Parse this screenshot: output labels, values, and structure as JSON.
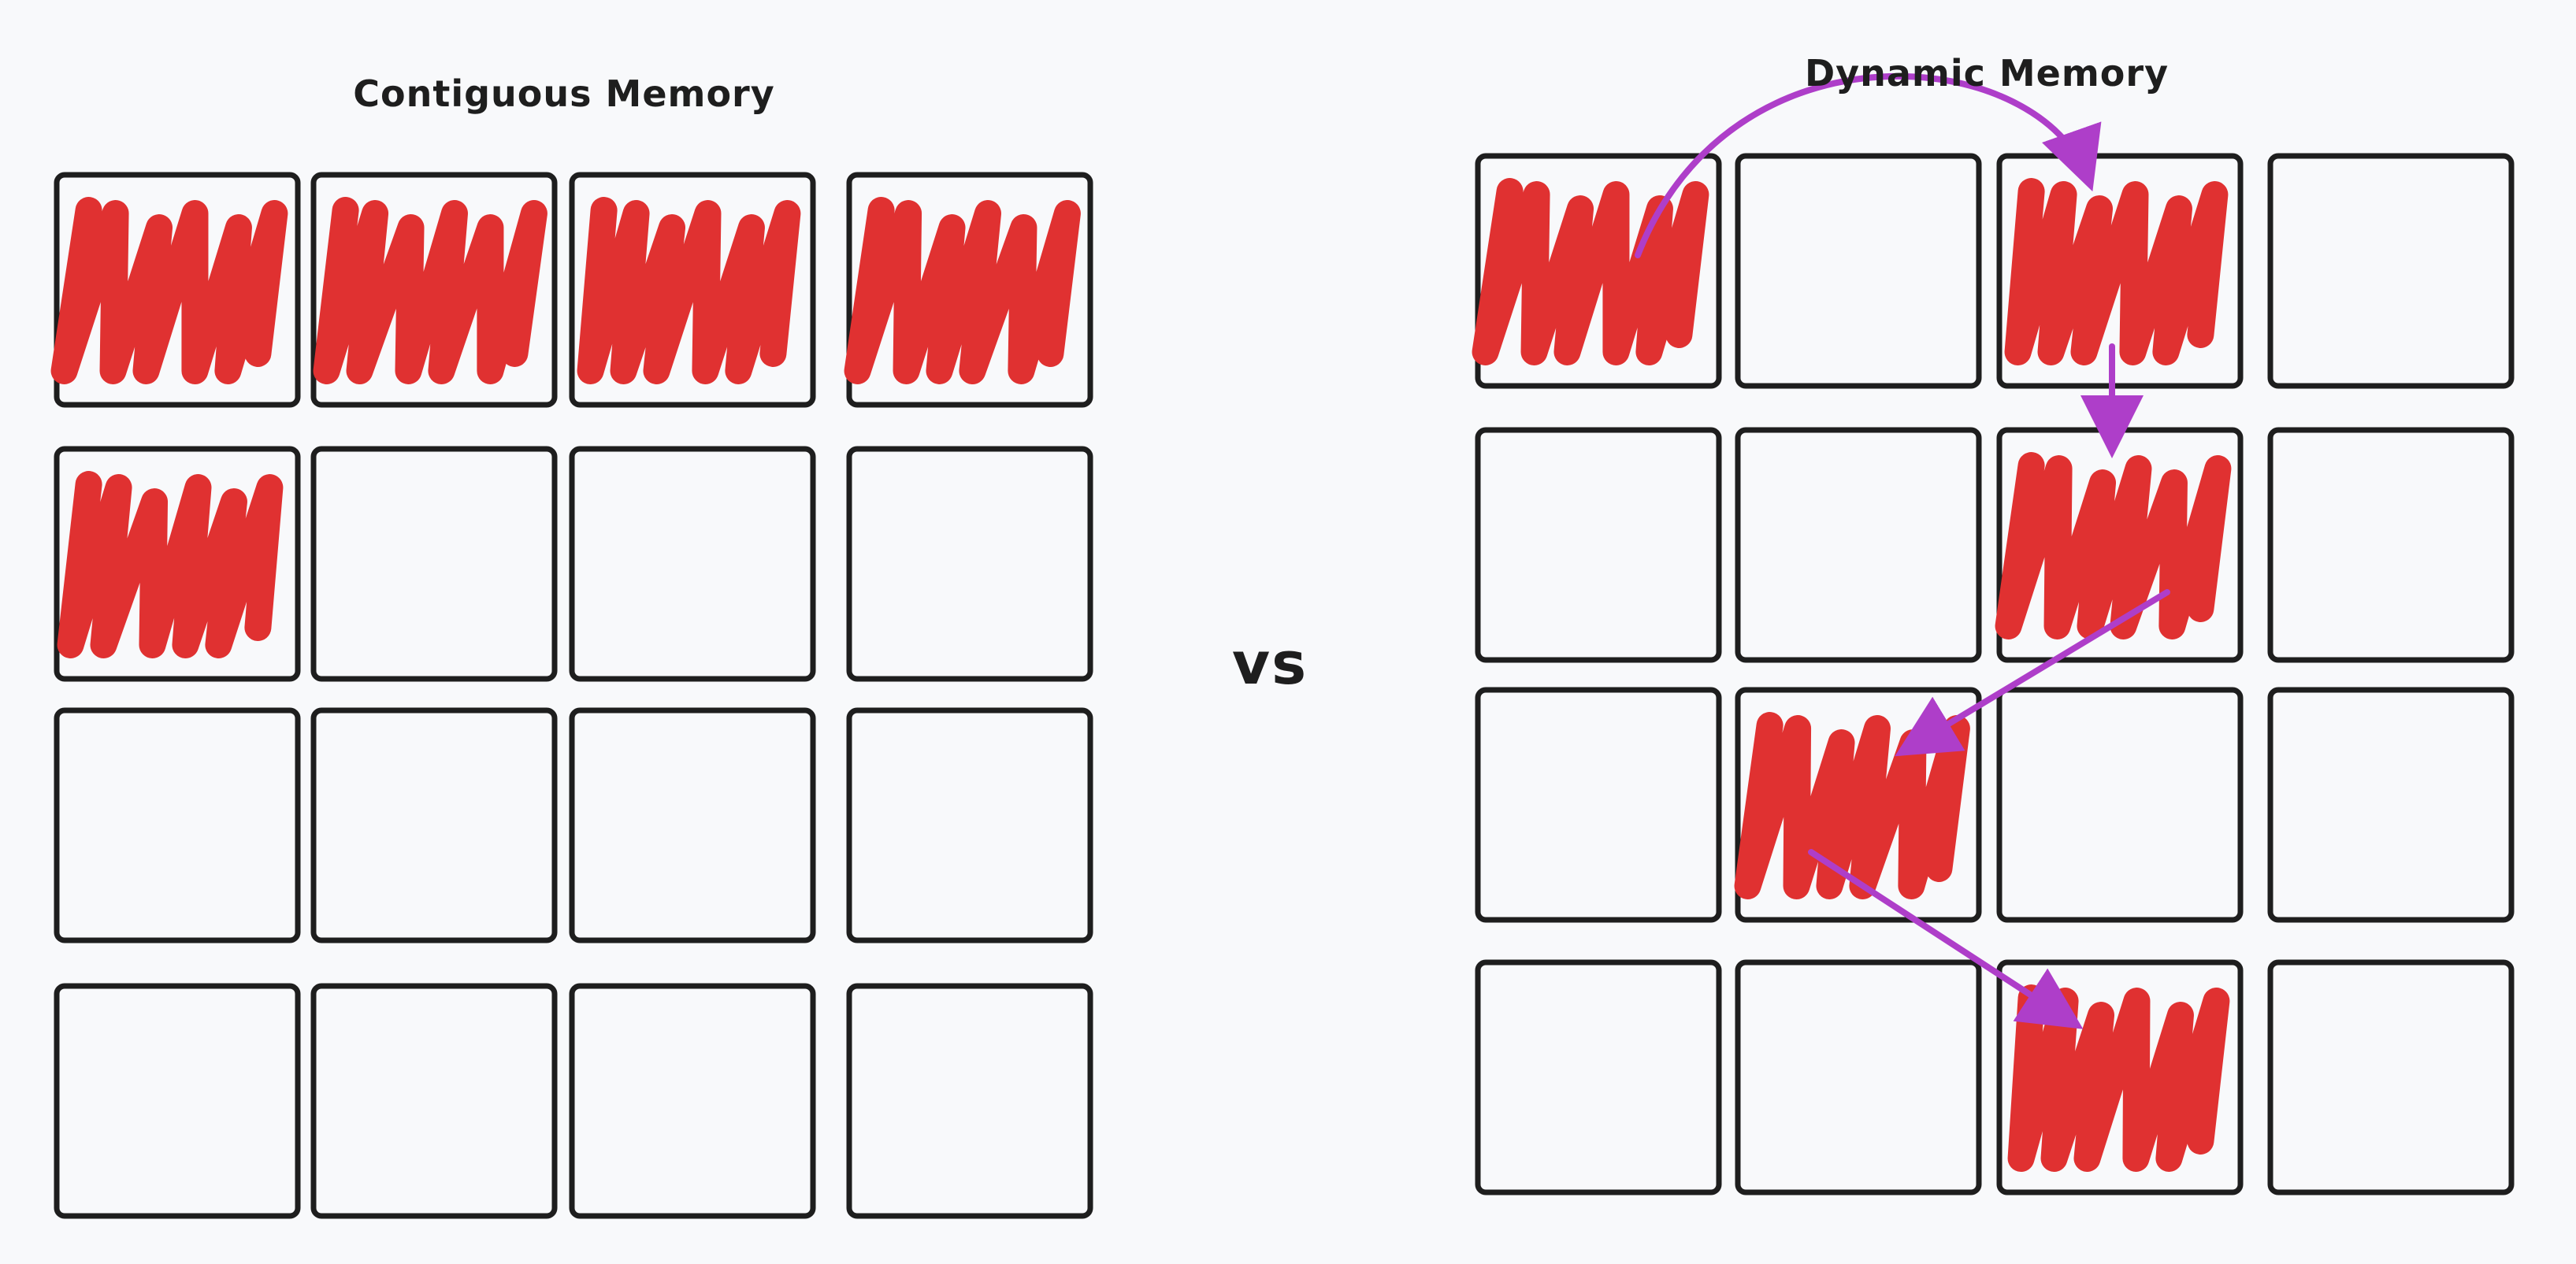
{
  "diagram": {
    "left_title": "Contiguous Memory",
    "right_title": "Dynamic Memory",
    "separator": "vs",
    "colors": {
      "background": "#f8f9fb",
      "cell_border": "#1e1e1e",
      "fill_scribble": "#e03131",
      "link_arrow": "#ae3ec9"
    },
    "grid": {
      "rows": 4,
      "cols": 4
    },
    "left_grid": {
      "filled_cells": [
        [
          0,
          0
        ],
        [
          0,
          1
        ],
        [
          0,
          2
        ],
        [
          0,
          3
        ],
        [
          1,
          0
        ]
      ]
    },
    "right_grid": {
      "filled_cells": [
        [
          0,
          0
        ],
        [
          0,
          2
        ],
        [
          1,
          2
        ],
        [
          2,
          1
        ],
        [
          3,
          2
        ]
      ],
      "links": [
        {
          "from": [
            0,
            0
          ],
          "to": [
            0,
            2
          ]
        },
        {
          "from": [
            0,
            2
          ],
          "to": [
            1,
            2
          ]
        },
        {
          "from": [
            1,
            2
          ],
          "to": [
            2,
            1
          ]
        },
        {
          "from": [
            2,
            1
          ],
          "to": [
            3,
            2
          ]
        }
      ]
    }
  }
}
